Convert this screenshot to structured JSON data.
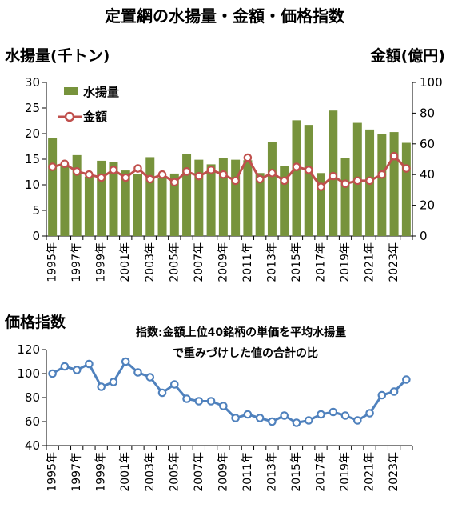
{
  "title": "定置網の水揚量・金額・価格指数",
  "colors": {
    "bar": "#77933c",
    "value_line": "#c0504d",
    "price_line": "#4f81bd",
    "axis": "#000000"
  },
  "chart_data": [
    {
      "type": "bar",
      "categories": [
        "1995年",
        "1996年",
        "1997年",
        "1998年",
        "1999年",
        "2000年",
        "2001年",
        "2002年",
        "2003年",
        "2004年",
        "2005年",
        "2006年",
        "2007年",
        "2008年",
        "2009年",
        "2010年",
        "2011年",
        "2012年",
        "2013年",
        "2014年",
        "2015年",
        "2016年",
        "2017年",
        "2018年",
        "2019年",
        "2020年",
        "2021年",
        "2022年",
        "2023年",
        "2024年"
      ],
      "x_tick_labels": [
        "1995年",
        "1997年",
        "1999年",
        "2001年",
        "2003年",
        "2005年",
        "2007年",
        "2009年",
        "2011年",
        "2013年",
        "2015年",
        "2017年",
        "2019年",
        "2021年",
        "2023年"
      ],
      "left_axis_label": "水揚量(千トン)",
      "right_axis_label": "金額(億円)",
      "ylim_left": [
        0,
        30
      ],
      "yticks_left": [
        0,
        5,
        10,
        15,
        20,
        25,
        30
      ],
      "ylim_right": [
        0,
        100
      ],
      "yticks_right": [
        0,
        20,
        40,
        60,
        80,
        100
      ],
      "legend_position": "top-left",
      "series": [
        {
          "name": "水揚量",
          "type": "bar",
          "axis": "left",
          "values": [
            19.2,
            14.0,
            15.8,
            11.6,
            14.7,
            14.5,
            12.8,
            12.1,
            15.4,
            11.4,
            12.2,
            16.0,
            14.9,
            14.0,
            15.2,
            14.9,
            14.8,
            12.3,
            18.3,
            13.6,
            22.6,
            21.7,
            12.3,
            24.5,
            15.3,
            22.1,
            20.8,
            20.0,
            20.3,
            18.2
          ]
        },
        {
          "name": "金額",
          "type": "line",
          "axis": "right",
          "values": [
            45,
            47,
            42,
            40,
            38,
            43,
            38,
            44,
            37,
            40,
            35,
            42,
            39,
            43,
            40,
            36,
            51,
            37,
            41,
            36,
            45,
            43,
            32,
            39,
            34,
            36,
            36,
            40,
            52,
            44
          ]
        }
      ]
    },
    {
      "type": "line",
      "title": "価格指数",
      "annotation_lines": [
        "指数:金額上位40銘柄の単価を平均水揚量",
        "で重みづけした値の合計の比"
      ],
      "categories": [
        "1995年",
        "1996年",
        "1997年",
        "1998年",
        "1999年",
        "2000年",
        "2001年",
        "2002年",
        "2003年",
        "2004年",
        "2005年",
        "2006年",
        "2007年",
        "2008年",
        "2009年",
        "2010年",
        "2011年",
        "2012年",
        "2013年",
        "2014年",
        "2015年",
        "2016年",
        "2017年",
        "2018年",
        "2019年",
        "2020年",
        "2021年",
        "2022年",
        "2023年",
        "2024年"
      ],
      "x_tick_labels": [
        "1995年",
        "1997年",
        "1999年",
        "2001年",
        "2003年",
        "2005年",
        "2007年",
        "2009年",
        "2011年",
        "2013年",
        "2015年",
        "2017年",
        "2019年",
        "2021年",
        "2023年"
      ],
      "ylim": [
        40,
        120
      ],
      "yticks": [
        40,
        60,
        80,
        100,
        120
      ],
      "series": [
        {
          "values": [
            100,
            106,
            103,
            108,
            89,
            93,
            110,
            101,
            97,
            84,
            91,
            79,
            77,
            77,
            73,
            63,
            66,
            63,
            60,
            65,
            59,
            61,
            66,
            68,
            65,
            61,
            67,
            82,
            85,
            95
          ]
        }
      ]
    }
  ]
}
